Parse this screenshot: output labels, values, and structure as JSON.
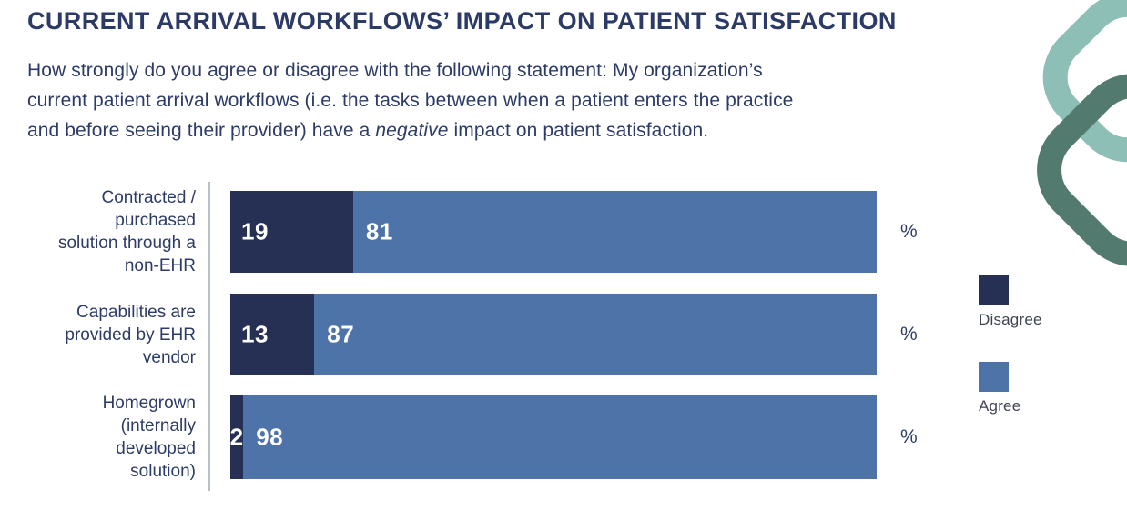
{
  "header": {
    "title": "CURRENT ARRIVAL WORKFLOWS’ IMPACT ON PATIENT SATISFACTION",
    "subtitle_lines": [
      "How strongly do you agree or disagree with the following statement: My organization’s",
      "current patient arrival workflows (i.e. the tasks between when a patient enters the practice"
    ],
    "subtitle_line3": {
      "pre": "and before seeing their provider) have a ",
      "italic": "negative",
      "post": " impact on patient satisfaction."
    }
  },
  "chart_data": {
    "type": "bar",
    "orientation": "horizontal_stacked",
    "title": "CURRENT ARRIVAL WORKFLOWS’ IMPACT ON PATIENT SATISFACTION",
    "unit_suffix": "%",
    "xlim": [
      0,
      100
    ],
    "grid": false,
    "legend_position": "right",
    "value_labels": "inside_start",
    "categories": [
      "Contracted / purchased solution through a non-EHR",
      "Capabilities are provided by EHR vendor",
      "Homegrown (internally developed solution)"
    ],
    "category_label_lines": [
      [
        "Contracted /",
        "purchased",
        "solution through a",
        "non-EHR"
      ],
      [
        "Capabilities are",
        "provided by EHR",
        "vendor"
      ],
      [
        "Homegrown",
        "(internally",
        "developed",
        "solution)"
      ]
    ],
    "series": [
      {
        "name": "Disagree",
        "color": "#263054",
        "values": [
          19,
          13,
          2
        ]
      },
      {
        "name": "Agree",
        "color": "#4d73a9",
        "values": [
          81,
          87,
          98
        ]
      }
    ]
  },
  "brand": {
    "ribbon_light_color": "#8dbfb6",
    "ribbon_dark_color": "#527a6e"
  }
}
